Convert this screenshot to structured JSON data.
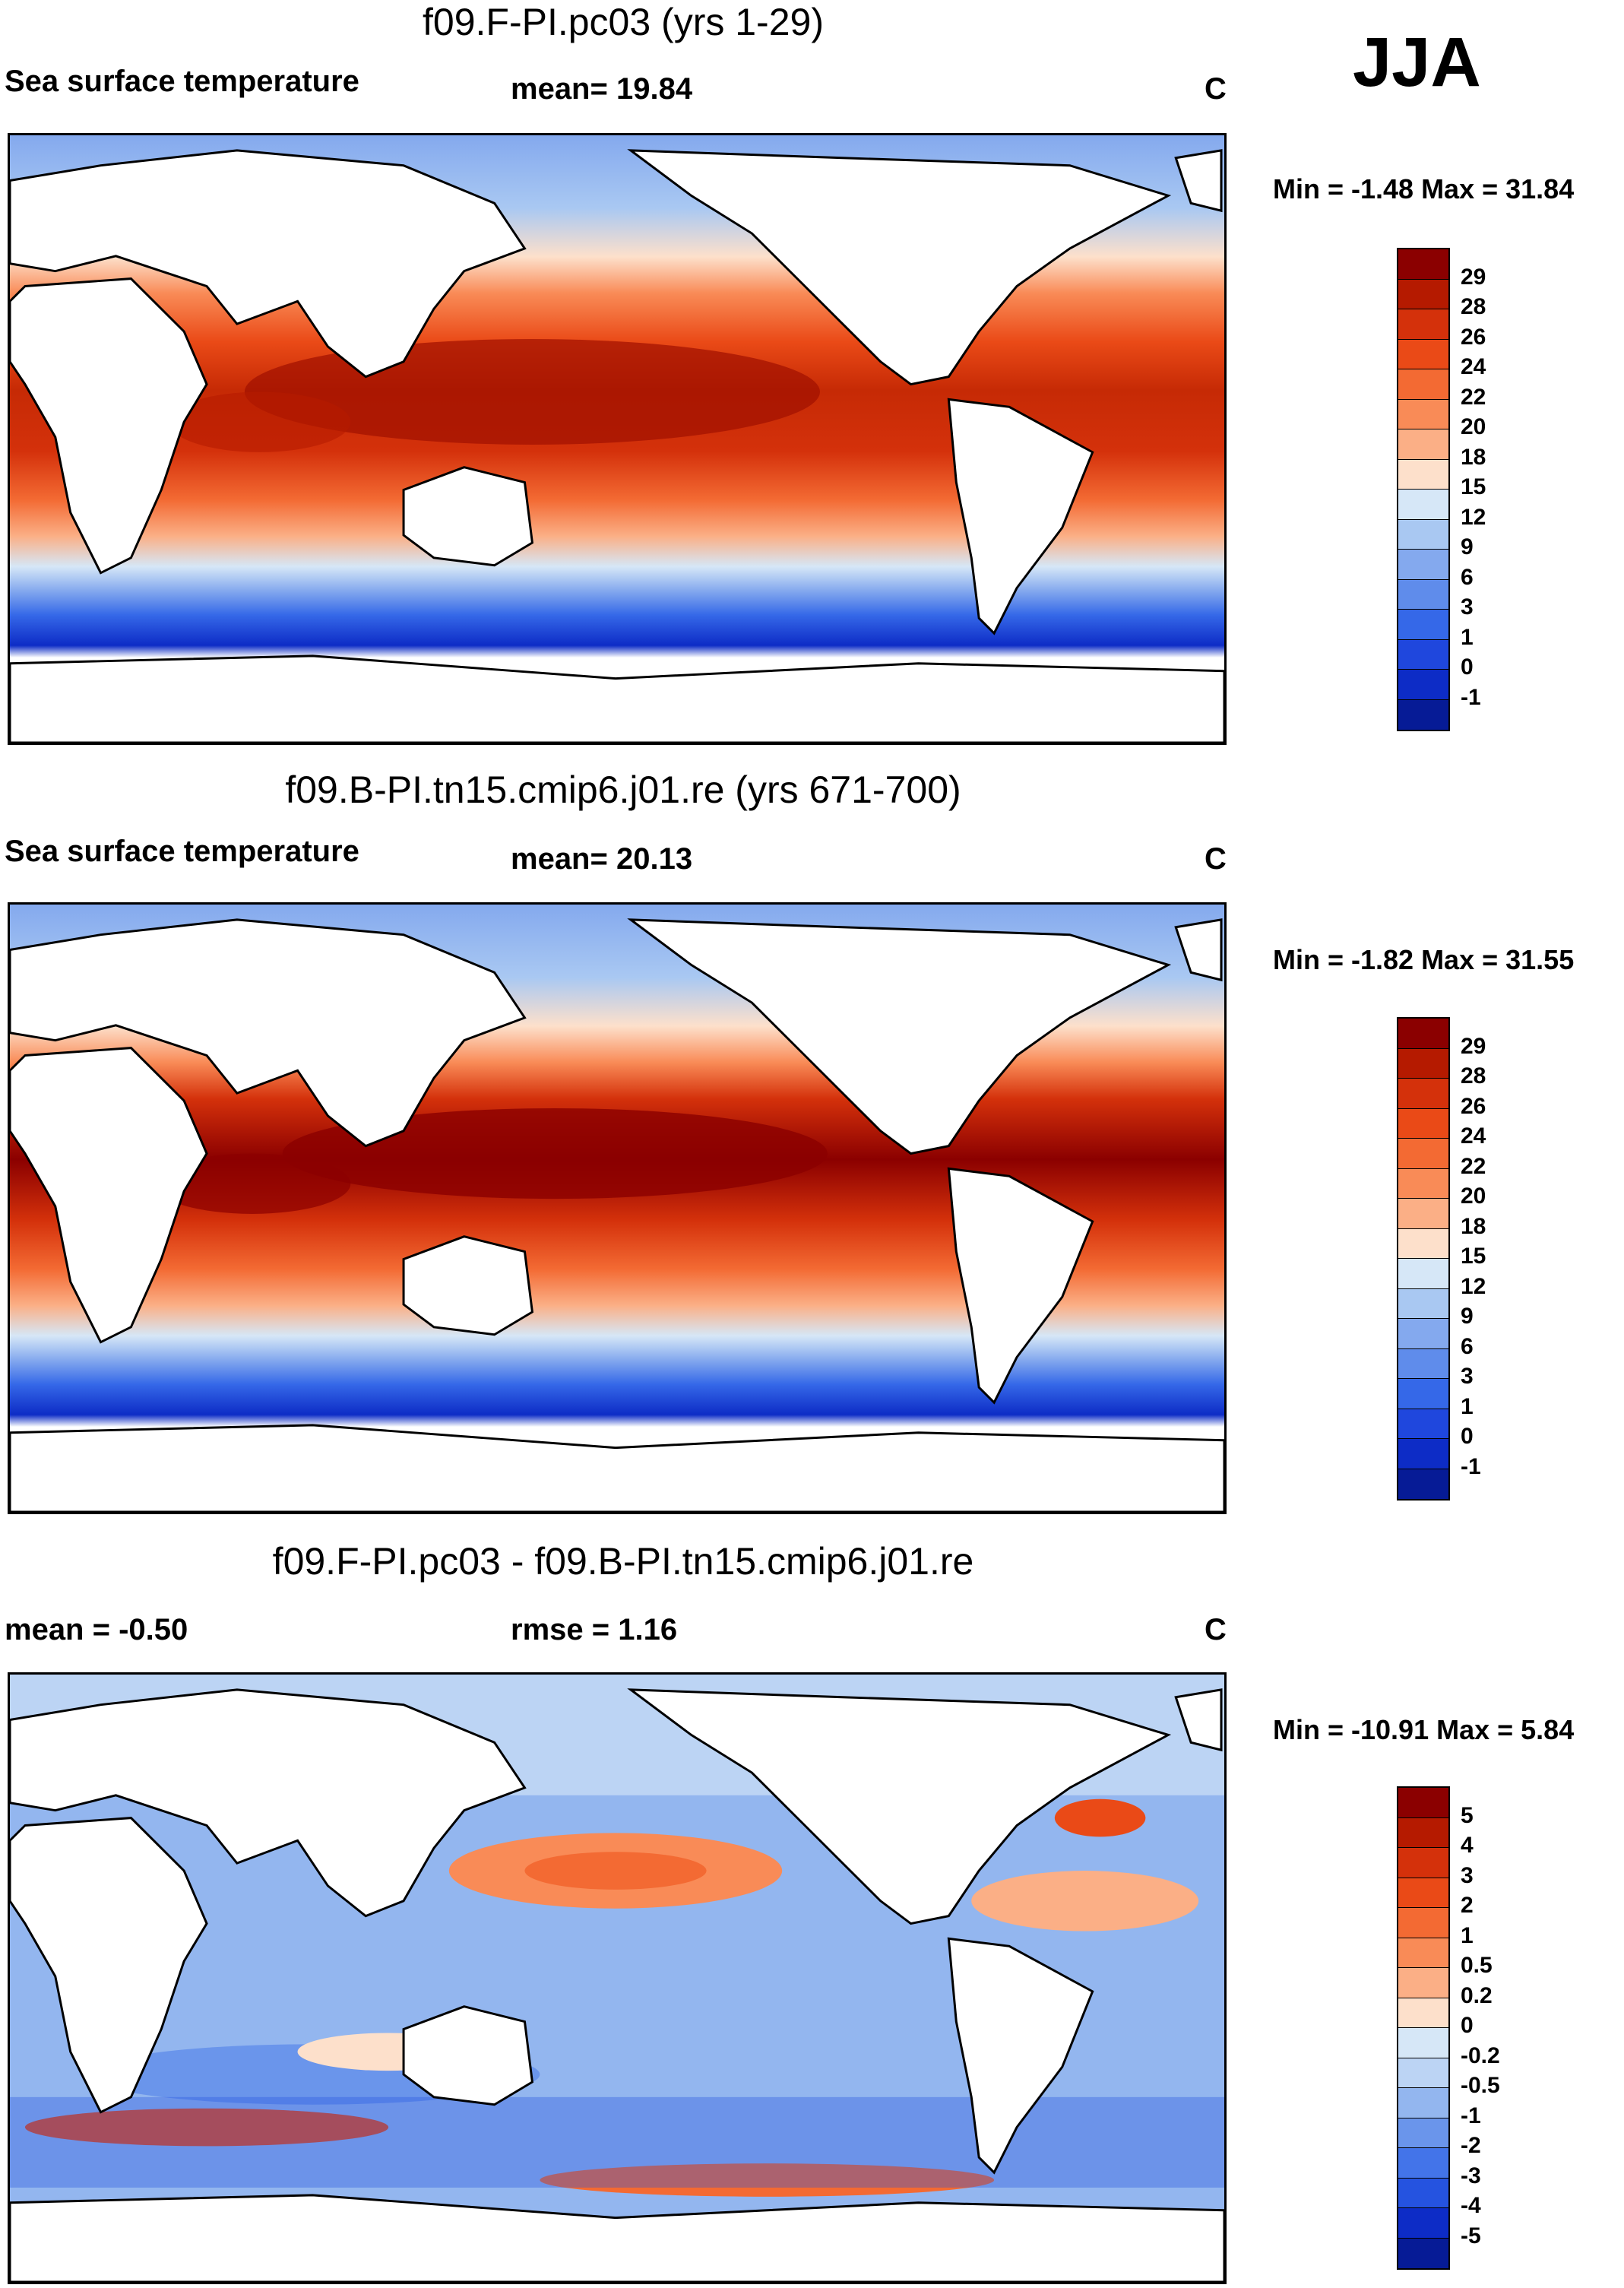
{
  "season": "JJA",
  "panels": [
    {
      "title": "f09.F-PI.pc03 (yrs 1-29)",
      "left_label": "Sea surface temperature",
      "center_label": "mean=  19.84",
      "units": "C",
      "minmax": "Min =  -1.48 Max =  31.84",
      "colorbar_labels": [
        "29",
        "28",
        "26",
        "24",
        "22",
        "20",
        "18",
        "15",
        "12",
        "9",
        "6",
        "3",
        "1",
        "0",
        "-1"
      ],
      "colorbar_colors": [
        "#8b0000",
        "#b51a00",
        "#d4310b",
        "#ea4a17",
        "#f36a33",
        "#f98b57",
        "#fbaf86",
        "#fde0cb",
        "#d6e7f7",
        "#a9c8f2",
        "#84a9ee",
        "#5f8ceb",
        "#3568e8",
        "#1f47dd",
        "#0d2cc6",
        "#061b96"
      ]
    },
    {
      "title": "f09.B-PI.tn15.cmip6.j01.re (yrs 671-700)",
      "left_label": "Sea surface temperature",
      "center_label": "mean=  20.13",
      "units": "C",
      "minmax": "Min =  -1.82 Max =  31.55",
      "colorbar_labels": [
        "29",
        "28",
        "26",
        "24",
        "22",
        "20",
        "18",
        "15",
        "12",
        "9",
        "6",
        "3",
        "1",
        "0",
        "-1"
      ],
      "colorbar_colors": [
        "#8b0000",
        "#b51a00",
        "#d4310b",
        "#ea4a17",
        "#f36a33",
        "#f98b57",
        "#fbaf86",
        "#fde0cb",
        "#d6e7f7",
        "#a9c8f2",
        "#84a9ee",
        "#5f8ceb",
        "#3568e8",
        "#1f47dd",
        "#0d2cc6",
        "#061b96"
      ]
    },
    {
      "title": "f09.F-PI.pc03 - f09.B-PI.tn15.cmip6.j01.re",
      "left_label": "mean =  -0.50",
      "center_label": "rmse =   1.16",
      "units": "C",
      "minmax": "Min = -10.91 Max =   5.84",
      "colorbar_labels": [
        "5",
        "4",
        "3",
        "2",
        "1",
        "0.5",
        "0.2",
        "0",
        "-0.2",
        "-0.5",
        "-1",
        "-2",
        "-3",
        "-4",
        "-5"
      ],
      "colorbar_colors": [
        "#8b0000",
        "#b51a00",
        "#d4310b",
        "#ea4a17",
        "#f36a33",
        "#f98b57",
        "#fbaf86",
        "#fde0cb",
        "#d6e7f7",
        "#bcd4f4",
        "#93b6ef",
        "#6a95eb",
        "#4374e9",
        "#2553e0",
        "#0d2cc6",
        "#061b96"
      ]
    }
  ]
}
